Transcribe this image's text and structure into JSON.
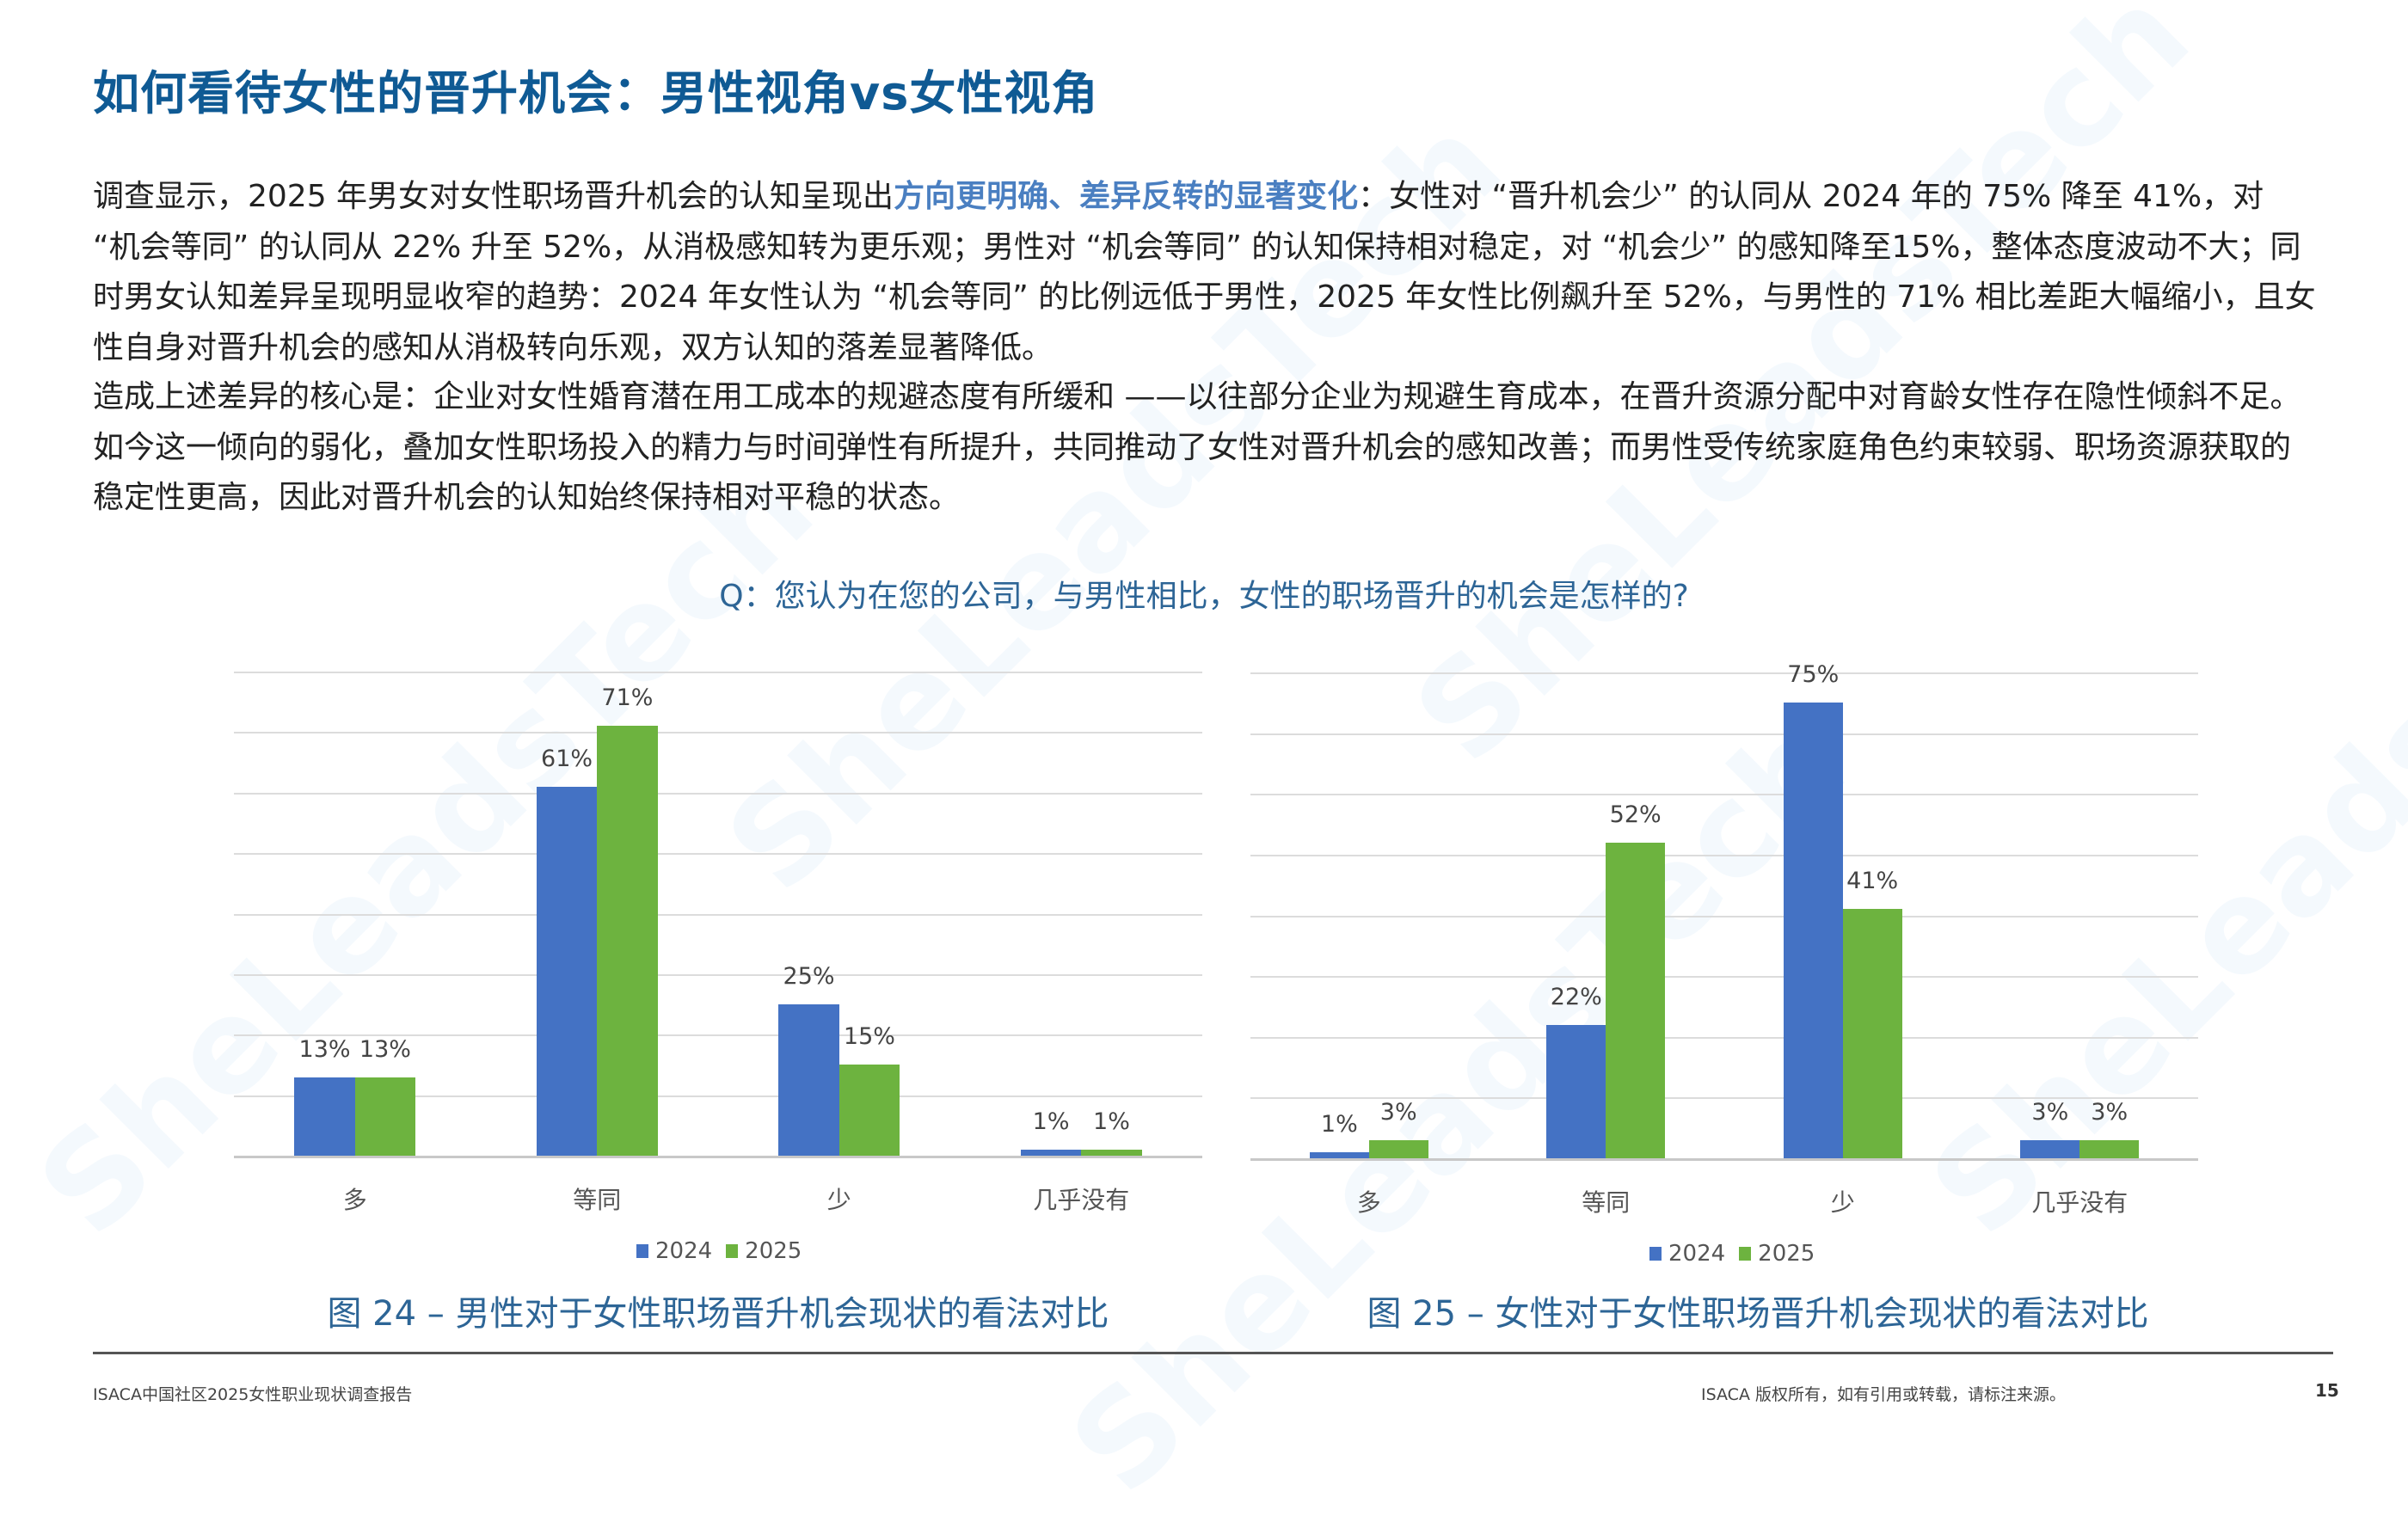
{
  "page": {
    "title": "如何看待女性的晋升机会：男性视角vs女性视角",
    "paragraph1": {
      "before": "调查显示，2025 年男女对女性职场晋升机会的认知呈现出",
      "highlight": "方向更明确、差异反转的显著变化",
      "after": "：女性对 “晋升机会少” 的认同从 2024 年的 75% 降至 41%，对 “机会等同” 的认同从 22% 升至 52%，从消极感知转为更乐观；男性对 “机会等同” 的认知保持相对稳定，对 “机会少” 的感知降至15%，整体态度波动不大；同时男女认知差异呈现明显收窄的趋势：2024 年女性认为 “机会等同” 的比例远低于男性，2025 年女性比例飙升至 52%，与男性的 71% 相比差距大幅缩小，且女性自身对晋升机会的感知从消极转向乐观，双方认知的落差显著降低。"
    },
    "paragraph2": "造成上述差异的核心是：企业对女性婚育潜在用工成本的规避态度有所缓和 ——以往部分企业为规避生育成本，在晋升资源分配中对育龄女性存在隐性倾斜不足。如今这一倾向的弱化，叠加女性职场投入的精力与时间弹性有所提升，共同推动了女性对晋升机会的感知改善；而男性受传统家庭角色约束较弱、职场资源获取的稳定性更高，因此对晋升机会的认知始终保持相对平稳的状态。",
    "question": "Q：您认为在您的公司，与男性相比，女性的职场晋升的机会是怎样的?",
    "footer": {
      "left": "ISACA中国社区2025女性职业现状调查报告",
      "right": "ISACA 版权所有，如有引用或转载，请标注来源。",
      "page_number": "15"
    },
    "watermark": "SheLeadsTech",
    "colors": {
      "title": "#0f5a94",
      "accent": "#4a7fc1",
      "series_2024": "#4472c4",
      "series_2025": "#6db33f"
    }
  },
  "chart_data": [
    {
      "type": "bar",
      "title": "图 24 – 男性对于女性职场晋升机会现状的看法对比",
      "categories": [
        "多",
        "等同",
        "少",
        "几乎没有"
      ],
      "series": [
        {
          "name": "2024",
          "values": [
            13,
            61,
            25,
            1
          ],
          "labels": [
            "13%",
            "61%",
            "25%",
            "1%"
          ]
        },
        {
          "name": "2025",
          "values": [
            13,
            71,
            15,
            1
          ],
          "labels": [
            "13%",
            "71%",
            "15%",
            "1%"
          ]
        }
      ],
      "xlabel": "",
      "ylabel": "",
      "ylim": [
        0,
        80
      ],
      "grid": true,
      "legend_position": "bottom",
      "y_axis_visible": false
    },
    {
      "type": "bar",
      "title": "图 25 – 女性对于女性职场晋升机会现状的看法对比",
      "categories": [
        "多",
        "等同",
        "少",
        "几乎没有"
      ],
      "series": [
        {
          "name": "2024",
          "values": [
            1,
            22,
            75,
            3
          ],
          "labels": [
            "1%",
            "22%",
            "75%",
            "3%"
          ]
        },
        {
          "name": "2025",
          "values": [
            3,
            52,
            41,
            3
          ],
          "labels": [
            "3%",
            "52%",
            "41%",
            "3%"
          ]
        }
      ],
      "xlabel": "",
      "ylabel": "",
      "ylim": [
        0,
        80
      ],
      "grid": true,
      "legend_position": "bottom",
      "y_axis_visible": false
    }
  ]
}
